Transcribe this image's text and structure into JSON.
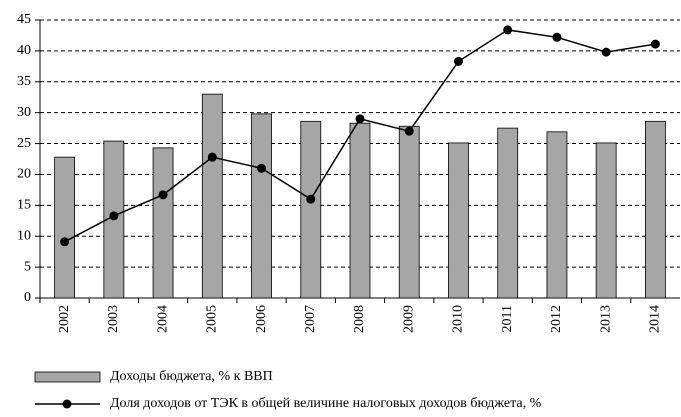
{
  "chart_data": {
    "type": "bar-line",
    "categories": [
      "2002",
      "2003",
      "2004",
      "2005",
      "2006",
      "2007",
      "2008",
      "2009",
      "2010",
      "2011",
      "2012",
      "2013",
      "2014"
    ],
    "series": [
      {
        "name": "Доходы бюджета, % к ВВП",
        "type": "bar",
        "color": "#a6a6a6",
        "values": [
          22.8,
          25.4,
          24.3,
          33,
          29.8,
          28.6,
          28.3,
          27.8,
          25.1,
          27.5,
          26.9,
          25.1,
          28.6
        ]
      },
      {
        "name": "Доля доходов от ТЭК в общей величине налоговых доходов бюджета, %",
        "type": "line",
        "color": "#000000",
        "values": [
          9.1,
          13.3,
          16.7,
          22.8,
          21,
          16,
          29,
          27,
          38.3,
          43.4,
          42.2,
          39.8,
          41.1
        ]
      }
    ],
    "ylim": [
      0,
      45
    ],
    "yticks": [
      0,
      5,
      10,
      15,
      20,
      25,
      30,
      35,
      40,
      45
    ],
    "grid": true
  }
}
